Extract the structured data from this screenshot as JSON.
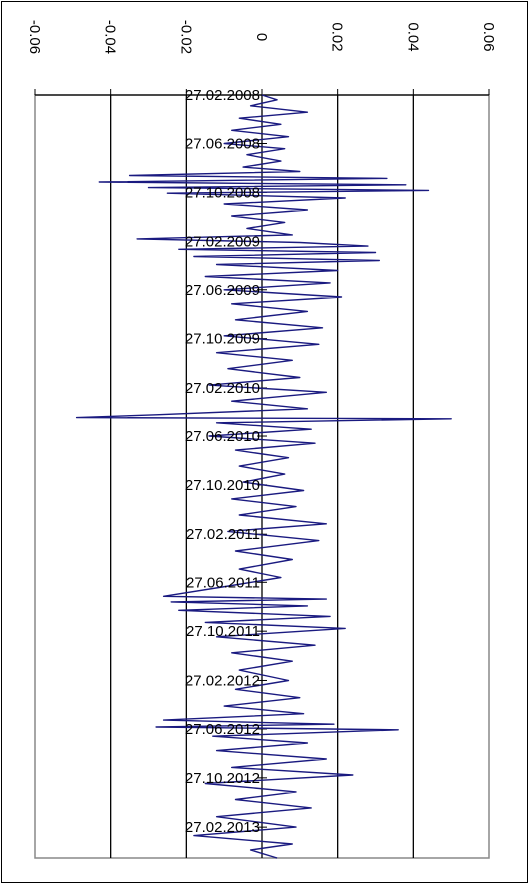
{
  "chart_data": {
    "type": "line",
    "orientation": "rotated-90-clockwise",
    "title": "",
    "xlabel": "",
    "ylabel": "",
    "value_axis": {
      "ylim": [
        -0.06,
        0.06
      ],
      "ticks": [
        -0.06,
        -0.04,
        -0.02,
        0,
        0.02,
        0.04,
        0.06
      ],
      "tick_labels": [
        "-0.06",
        "-0.04",
        "-0.02",
        "0",
        "0.02",
        "0.04",
        "0.06"
      ],
      "gridlines": true
    },
    "category_axis": {
      "range": [
        "2008-02-27",
        "2013-05-15"
      ],
      "tick_labels": [
        "27.02.2008",
        "27.06.2008",
        "27.10.2008",
        "27.02.2009",
        "27.06.2009",
        "27.10.2009",
        "27.02.2010",
        "27.06.2010",
        "27.10.2010",
        "27.02.2011",
        "27.06.2011",
        "27.10.2011",
        "27.02.2012",
        "27.06.2012",
        "27.10.2012",
        "27.02.2013"
      ]
    },
    "series": [
      {
        "color": "#1a1a80",
        "points": [
          [
            "2008-02-27",
            0.0
          ],
          [
            "2008-03-10",
            0.004
          ],
          [
            "2008-03-25",
            -0.003
          ],
          [
            "2008-04-10",
            0.012
          ],
          [
            "2008-04-25",
            -0.006
          ],
          [
            "2008-05-10",
            0.005
          ],
          [
            "2008-05-25",
            -0.008
          ],
          [
            "2008-06-10",
            0.007
          ],
          [
            "2008-06-27",
            -0.01
          ],
          [
            "2008-07-10",
            0.006
          ],
          [
            "2008-07-25",
            -0.004
          ],
          [
            "2008-08-10",
            0.005
          ],
          [
            "2008-08-25",
            -0.005
          ],
          [
            "2008-09-05",
            0.01
          ],
          [
            "2008-09-15",
            -0.035
          ],
          [
            "2008-09-22",
            0.033
          ],
          [
            "2008-10-01",
            -0.043
          ],
          [
            "2008-10-08",
            0.038
          ],
          [
            "2008-10-15",
            -0.03
          ],
          [
            "2008-10-22",
            0.044
          ],
          [
            "2008-10-29",
            -0.025
          ],
          [
            "2008-11-10",
            0.022
          ],
          [
            "2008-11-25",
            -0.01
          ],
          [
            "2008-12-10",
            0.012
          ],
          [
            "2008-12-25",
            -0.008
          ],
          [
            "2009-01-10",
            0.006
          ],
          [
            "2009-01-25",
            -0.004
          ],
          [
            "2009-02-10",
            0.008
          ],
          [
            "2009-02-20",
            -0.033
          ],
          [
            "2009-03-01",
            0.01
          ],
          [
            "2009-03-10",
            0.028
          ],
          [
            "2009-03-18",
            -0.022
          ],
          [
            "2009-03-26",
            0.03
          ],
          [
            "2009-04-05",
            -0.018
          ],
          [
            "2009-04-15",
            0.031
          ],
          [
            "2009-04-25",
            -0.012
          ],
          [
            "2009-05-10",
            0.02
          ],
          [
            "2009-05-25",
            -0.015
          ],
          [
            "2009-06-10",
            0.018
          ],
          [
            "2009-06-27",
            -0.01
          ],
          [
            "2009-07-15",
            0.021
          ],
          [
            "2009-08-01",
            -0.008
          ],
          [
            "2009-08-20",
            0.012
          ],
          [
            "2009-09-10",
            -0.007
          ],
          [
            "2009-09-30",
            0.016
          ],
          [
            "2009-10-20",
            -0.01
          ],
          [
            "2009-11-10",
            0.015
          ],
          [
            "2009-12-01",
            -0.012
          ],
          [
            "2009-12-20",
            0.008
          ],
          [
            "2010-01-10",
            -0.009
          ],
          [
            "2010-02-01",
            0.01
          ],
          [
            "2010-02-20",
            -0.014
          ],
          [
            "2010-03-10",
            0.017
          ],
          [
            "2010-04-01",
            -0.008
          ],
          [
            "2010-04-20",
            0.012
          ],
          [
            "2010-05-05",
            -0.028
          ],
          [
            "2010-05-12",
            -0.049
          ],
          [
            "2010-05-15",
            0.05
          ],
          [
            "2010-05-25",
            -0.012
          ],
          [
            "2010-06-10",
            0.013
          ],
          [
            "2010-06-27",
            -0.014
          ],
          [
            "2010-07-15",
            0.014
          ],
          [
            "2010-08-01",
            -0.007
          ],
          [
            "2010-08-20",
            0.007
          ],
          [
            "2010-09-10",
            -0.006
          ],
          [
            "2010-09-30",
            0.006
          ],
          [
            "2010-10-20",
            -0.005
          ],
          [
            "2010-11-10",
            0.011
          ],
          [
            "2010-12-01",
            -0.008
          ],
          [
            "2010-12-20",
            0.009
          ],
          [
            "2011-01-10",
            -0.006
          ],
          [
            "2011-02-01",
            0.017
          ],
          [
            "2011-02-20",
            -0.009
          ],
          [
            "2011-03-15",
            0.015
          ],
          [
            "2011-04-10",
            -0.007
          ],
          [
            "2011-05-01",
            0.008
          ],
          [
            "2011-05-25",
            -0.006
          ],
          [
            "2011-06-15",
            0.005
          ],
          [
            "2011-07-05",
            -0.008
          ],
          [
            "2011-08-01",
            -0.026
          ],
          [
            "2011-08-08",
            0.017
          ],
          [
            "2011-08-15",
            -0.024
          ],
          [
            "2011-08-25",
            0.012
          ],
          [
            "2011-09-05",
            -0.022
          ],
          [
            "2011-09-20",
            0.018
          ],
          [
            "2011-10-05",
            -0.015
          ],
          [
            "2011-10-20",
            0.022
          ],
          [
            "2011-11-10",
            -0.012
          ],
          [
            "2011-12-01",
            0.014
          ],
          [
            "2011-12-20",
            -0.008
          ],
          [
            "2012-01-10",
            0.008
          ],
          [
            "2012-02-01",
            -0.006
          ],
          [
            "2012-02-27",
            0.007
          ],
          [
            "2012-03-20",
            -0.007
          ],
          [
            "2012-04-10",
            0.01
          ],
          [
            "2012-05-01",
            -0.01
          ],
          [
            "2012-05-20",
            0.011
          ],
          [
            "2012-06-05",
            -0.026
          ],
          [
            "2012-06-15",
            0.019
          ],
          [
            "2012-06-22",
            -0.028
          ],
          [
            "2012-06-29",
            0.036
          ],
          [
            "2012-07-15",
            -0.013
          ],
          [
            "2012-08-01",
            0.012
          ],
          [
            "2012-08-20",
            -0.012
          ],
          [
            "2012-09-10",
            0.017
          ],
          [
            "2012-10-01",
            -0.008
          ],
          [
            "2012-10-20",
            0.024
          ],
          [
            "2012-11-10",
            -0.015
          ],
          [
            "2012-12-01",
            0.009
          ],
          [
            "2012-12-20",
            -0.007
          ],
          [
            "2013-01-10",
            0.013
          ],
          [
            "2013-02-01",
            -0.012
          ],
          [
            "2013-02-27",
            0.009
          ],
          [
            "2013-03-20",
            -0.018
          ],
          [
            "2013-04-10",
            0.008
          ],
          [
            "2013-04-25",
            -0.003
          ],
          [
            "2013-05-15",
            0.004
          ]
        ]
      }
    ]
  }
}
